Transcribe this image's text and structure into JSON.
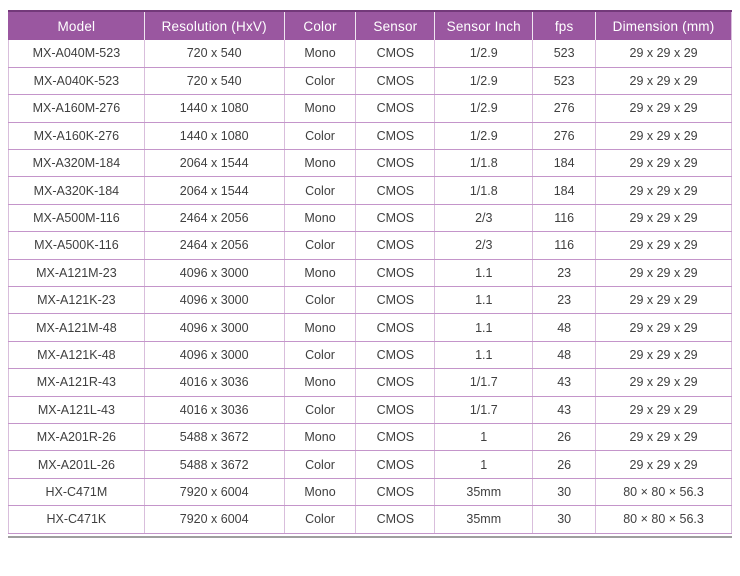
{
  "table": {
    "columns": [
      {
        "id": "model",
        "label": "Model"
      },
      {
        "id": "resolution",
        "label": "Resolution (HxV)"
      },
      {
        "id": "color",
        "label": "Color"
      },
      {
        "id": "sensor",
        "label": "Sensor"
      },
      {
        "id": "sensor_inch",
        "label": "Sensor Inch"
      },
      {
        "id": "fps",
        "label": "fps"
      },
      {
        "id": "dimension",
        "label": "Dimension (mm)"
      }
    ],
    "rows": [
      [
        "MX-A040M-523",
        "720 x 540",
        "Mono",
        "CMOS",
        "1/2.9",
        "523",
        "29 x 29 x 29"
      ],
      [
        "MX-A040K-523",
        "720 x 540",
        "Color",
        "CMOS",
        "1/2.9",
        "523",
        "29 x 29 x 29"
      ],
      [
        "MX-A160M-276",
        "1440 x 1080",
        "Mono",
        "CMOS",
        "1/2.9",
        "276",
        "29 x 29 x 29"
      ],
      [
        "MX-A160K-276",
        "1440 x 1080",
        "Color",
        "CMOS",
        "1/2.9",
        "276",
        "29 x 29 x 29"
      ],
      [
        "MX-A320M-184",
        "2064 x 1544",
        "Mono",
        "CMOS",
        "1/1.8",
        "184",
        "29 x 29 x 29"
      ],
      [
        "MX-A320K-184",
        "2064 x 1544",
        "Color",
        "CMOS",
        "1/1.8",
        "184",
        "29 x 29 x 29"
      ],
      [
        "MX-A500M-116",
        "2464 x 2056",
        "Mono",
        "CMOS",
        "2/3",
        "116",
        "29 x 29 x 29"
      ],
      [
        "MX-A500K-116",
        "2464 x 2056",
        "Color",
        "CMOS",
        "2/3",
        "116",
        "29 x 29 x 29"
      ],
      [
        "MX-A121M-23",
        "4096 x 3000",
        "Mono",
        "CMOS",
        "1.1",
        "23",
        "29 x 29 x 29"
      ],
      [
        "MX-A121K-23",
        "4096 x 3000",
        "Color",
        "CMOS",
        "1.1",
        "23",
        "29 x 29 x 29"
      ],
      [
        "MX-A121M-48",
        "4096 x 3000",
        "Mono",
        "CMOS",
        "1.1",
        "48",
        "29 x 29 x 29"
      ],
      [
        "MX-A121K-48",
        "4096 x 3000",
        "Color",
        "CMOS",
        "1.1",
        "48",
        "29 x 29 x 29"
      ],
      [
        "MX-A121R-43",
        "4016 x 3036",
        "Mono",
        "CMOS",
        "1/1.7",
        "43",
        "29 x 29 x 29"
      ],
      [
        "MX-A121L-43",
        "4016 x 3036",
        "Color",
        "CMOS",
        "1/1.7",
        "43",
        "29 x 29 x 29"
      ],
      [
        "MX-A201R-26",
        "5488 x 3672",
        "Mono",
        "CMOS",
        "1",
        "26",
        "29 x 29 x 29"
      ],
      [
        "MX-A201L-26",
        "5488 x 3672",
        "Color",
        "CMOS",
        "1",
        "26",
        "29 x 29 x 29"
      ],
      [
        "HX-C471M",
        "7920 x 6004",
        "Mono",
        "CMOS",
        "35mm",
        "30",
        "80 × 80 × 56.3"
      ],
      [
        "HX-C471K",
        "7920 x 6004",
        "Color",
        "CMOS",
        "35mm",
        "30",
        "80 × 80 × 56.3"
      ]
    ]
  },
  "colors": {
    "header_bg": "#9A57A0",
    "header_top_border": "#73397A",
    "header_text": "#FFFFFF",
    "row_border_horizontal": "#C495CA",
    "row_border_vertical": "#D9BEDC",
    "body_text": "#3F3F3F",
    "bottom_rule": "#9E9E9E"
  }
}
